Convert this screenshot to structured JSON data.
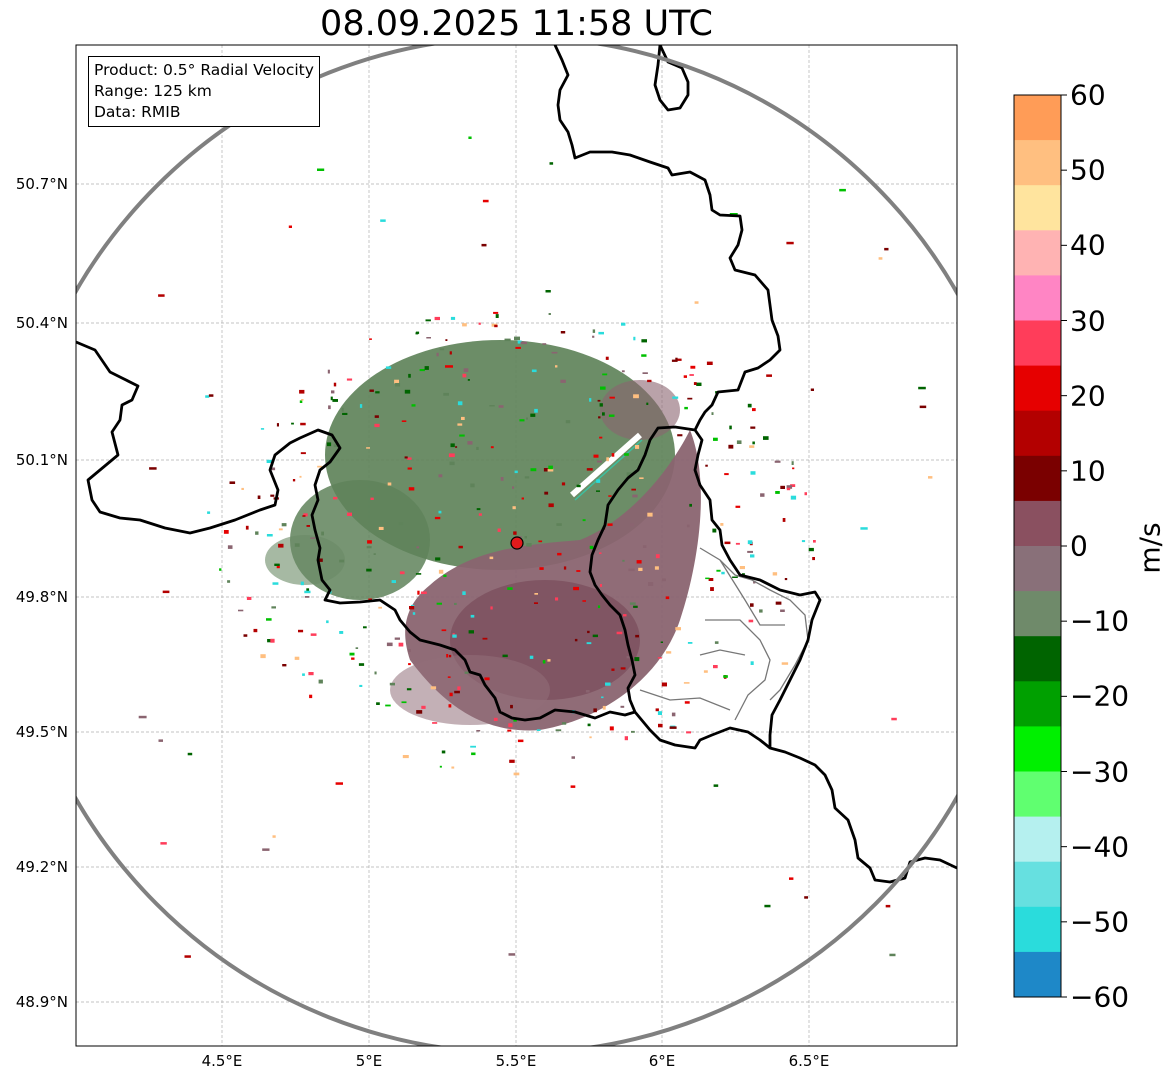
{
  "title": "08.09.2025 11:58 UTC",
  "info": {
    "product": "Product: 0.5° Radial Velocity",
    "range": "Range: 125 km",
    "data": "Data: RMIB"
  },
  "axes": {
    "lat_labels": [
      "50.7°N",
      "50.4°N",
      "50.1°N",
      "49.8°N",
      "49.5°N",
      "49.2°N",
      "48.9°N"
    ],
    "lon_labels": [
      "4.5°E",
      "5°E",
      "5.5°E",
      "6°E",
      "6.5°E"
    ]
  },
  "colorbar": {
    "label": "m/s",
    "min": -60,
    "max": 60,
    "ticks": [
      "60",
      "50",
      "40",
      "30",
      "20",
      "10",
      "0",
      "−10",
      "−20",
      "−30",
      "−40",
      "−50",
      "−60"
    ],
    "colors": [
      "#ff9c57",
      "#ffbf80",
      "#ffe49e",
      "#ffb3b3",
      "#ff85c4",
      "#ff3d5a",
      "#e60000",
      "#b30000",
      "#7a0000",
      "#8a5060",
      "#897079",
      "#6f8a6a",
      "#006400",
      "#00a000",
      "#00f000",
      "#60ff70",
      "#b5f0ef",
      "#66e0e0",
      "#2adcdc",
      "#1e88c8"
    ]
  },
  "radar": {
    "site": "radar-site-marker",
    "site_color": "#e31a1c",
    "range_ring_color": "#808080",
    "incoming_color": "#5f835a",
    "outgoing_color": "#8a6470"
  }
}
